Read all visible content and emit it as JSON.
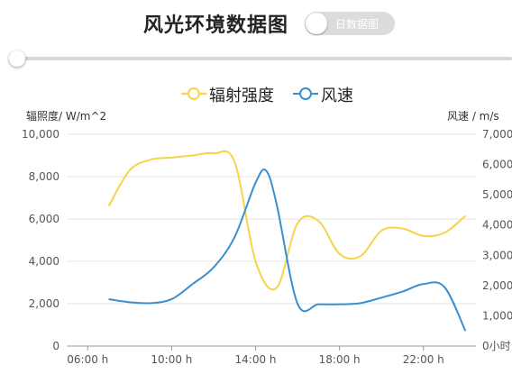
{
  "header": {
    "title": "风光环境数据图",
    "toggle_label": "日数据图",
    "toggle_on": false
  },
  "slider": {
    "value": 0
  },
  "colors": {
    "radiation": "#f5d547",
    "wind": "#3a8fd0",
    "grid": "#e6e6e6",
    "axis": "#999999"
  },
  "chart_data": {
    "type": "line",
    "legend": {
      "position": "top-center",
      "items": [
        "辐射强度",
        "风速"
      ]
    },
    "yleft": {
      "label": "辐照度/ W/m^2",
      "ticks": [
        "0",
        "2,000",
        "4,000",
        "6,000",
        "8,000",
        "10,000"
      ],
      "range": [
        0,
        10000
      ]
    },
    "yright": {
      "label": "风速 / m/s",
      "ticks": [
        "0小时",
        "1,000",
        "2,000",
        "3,000",
        "4,000",
        "5,000",
        "6,000",
        "7,000"
      ],
      "range": [
        0,
        7000
      ]
    },
    "xaxis": {
      "ticks": [
        "06:00 h",
        "10:00 h",
        "14:00 h",
        "18:00 h",
        "22:00 h"
      ]
    },
    "grid": true,
    "series": [
      {
        "name": "辐射强度",
        "axis": "left",
        "x": [
          "07:00",
          "08:00",
          "09:00",
          "10:00",
          "11:00",
          "12:00",
          "13:00",
          "14:00",
          "15:00",
          "16:00",
          "17:00",
          "18:00",
          "19:00",
          "20:00",
          "21:00",
          "22:00",
          "23:00",
          "24:00"
        ],
        "values": [
          6600,
          8300,
          8800,
          8900,
          9000,
          9100,
          8700,
          4000,
          2750,
          5800,
          5900,
          4350,
          4250,
          5450,
          5550,
          5200,
          5350,
          6150
        ]
      },
      {
        "name": "风速",
        "axis": "right",
        "x": [
          "07:00",
          "08:00",
          "09:00",
          "10:00",
          "11:00",
          "12:00",
          "13:00",
          "14:00",
          "14:30",
          "15:00",
          "16:00",
          "17:00",
          "18:00",
          "19:00",
          "20:00",
          "21:00",
          "22:00",
          "23:00",
          "24:00"
        ],
        "values": [
          1550,
          1450,
          1420,
          1550,
          2050,
          2600,
          3600,
          5400,
          5800,
          4700,
          1400,
          1380,
          1380,
          1420,
          1600,
          1800,
          2050,
          1950,
          500
        ]
      }
    ]
  }
}
